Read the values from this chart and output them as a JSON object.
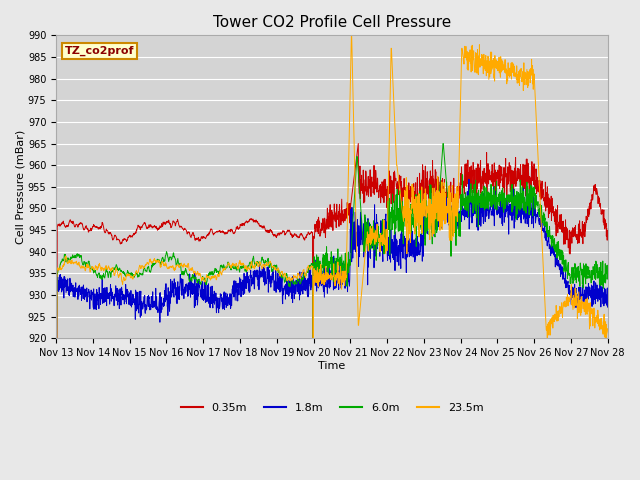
{
  "title": "Tower CO2 Profile Cell Pressure",
  "xlabel": "Time",
  "ylabel": "Cell Pressure (mBar)",
  "ylim": [
    920,
    990
  ],
  "yticks": [
    920,
    925,
    930,
    935,
    940,
    945,
    950,
    955,
    960,
    965,
    970,
    975,
    980,
    985,
    990
  ],
  "x_labels": [
    "Nov 13",
    "Nov 14",
    "Nov 15",
    "Nov 16",
    "Nov 17",
    "Nov 18",
    "Nov 19",
    "Nov 20",
    "Nov 21",
    "Nov 22",
    "Nov 23",
    "Nov 24",
    "Nov 25",
    "Nov 26",
    "Nov 27",
    "Nov 28"
  ],
  "legend_label": "TZ_co2prof",
  "series_labels": [
    "0.35m",
    "1.8m",
    "6.0m",
    "23.5m"
  ],
  "series_colors": [
    "#cc0000",
    "#0000cc",
    "#00aa00",
    "#ffaa00"
  ],
  "fig_width": 6.4,
  "fig_height": 4.8,
  "dpi": 100,
  "background_color": "#e8e8e8",
  "plot_bg_color": "#d4d4d4",
  "grid_color": "#ffffff",
  "title_fontsize": 11,
  "axis_label_fontsize": 8,
  "tick_fontsize": 7,
  "legend_fontsize": 8
}
